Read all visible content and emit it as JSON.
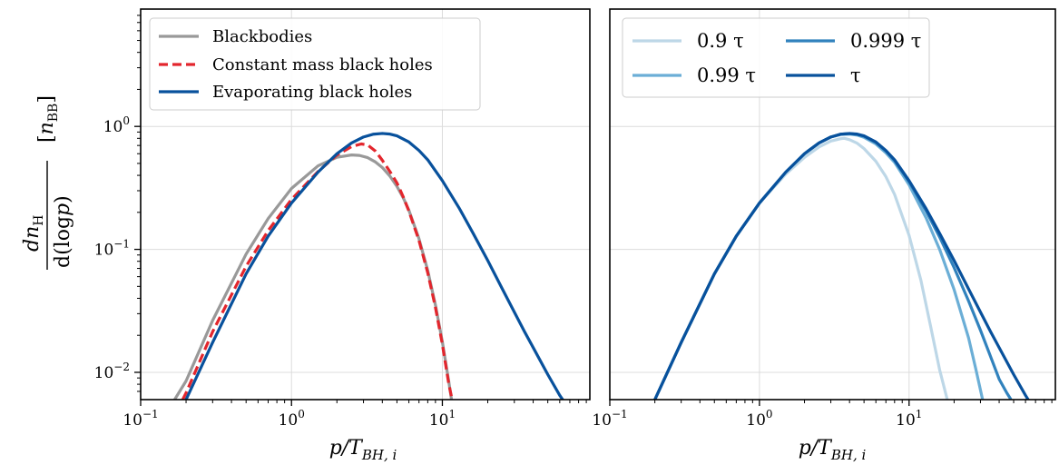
{
  "colors": {
    "blackbody": "#999999",
    "constant_mass": "#e3262d",
    "evaporating": "#08519c",
    "t090": "#bdd7e7",
    "t099": "#6baed6",
    "t0999": "#3182bd",
    "t1": "#08519c"
  },
  "ylabel": {
    "num_base": "dn",
    "num_sub": "H",
    "den_pre": "d(log",
    "den_var": "p",
    "den_post": ")",
    "unit_pre": "[",
    "unit_var": "n",
    "unit_sub": "BB",
    "unit_post": "]"
  },
  "chart_data": [
    {
      "type": "line",
      "panel": "left",
      "xlabel": {
        "var": "p/T",
        "sub": "BH, i"
      },
      "xscale": "log",
      "yscale": "log",
      "xlim": [
        0.1,
        95
      ],
      "ylim": [
        0.006,
        9
      ],
      "grid": true,
      "x_ticks": [
        {
          "value": 0.1,
          "base": "10",
          "exp": "−1"
        },
        {
          "value": 1,
          "base": "10",
          "exp": "0"
        },
        {
          "value": 10,
          "base": "10",
          "exp": "1"
        }
      ],
      "y_ticks": [
        {
          "value": 0.01,
          "base": "10",
          "exp": "−2"
        },
        {
          "value": 0.1,
          "base": "10",
          "exp": "−1"
        },
        {
          "value": 1,
          "base": "10",
          "exp": "0"
        }
      ],
      "legend": {
        "placement": "upper-left",
        "columns": 1
      },
      "series": [
        {
          "name": "Blackbodies",
          "style": "solid",
          "x": [
            0.168,
            0.2,
            0.3,
            0.5,
            0.7,
            1.0,
            1.5,
            2.0,
            2.5,
            2.82,
            3.2,
            3.6,
            4.0,
            4.5,
            5.0,
            5.5,
            6.0,
            7.0,
            8.0,
            9.0,
            10.0,
            11.0,
            11.5
          ],
          "y": [
            0.006,
            0.0085,
            0.0264,
            0.0915,
            0.178,
            0.313,
            0.478,
            0.561,
            0.586,
            0.581,
            0.557,
            0.514,
            0.463,
            0.393,
            0.325,
            0.263,
            0.208,
            0.122,
            0.0673,
            0.0353,
            0.0177,
            0.0086,
            0.006
          ]
        },
        {
          "name": "Constant mass black holes",
          "style": "dashed",
          "x": [
            0.19,
            0.2,
            0.3,
            0.5,
            0.7,
            1.0,
            1.5,
            2.0,
            2.5,
            2.9,
            3.2,
            3.6,
            4.0,
            4.5,
            5.0,
            5.5,
            6.0,
            7.0,
            8.0,
            9.0,
            10.0,
            11.0,
            11.6
          ],
          "y": [
            0.006,
            0.0068,
            0.0214,
            0.0728,
            0.142,
            0.255,
            0.43,
            0.585,
            0.685,
            0.72,
            0.706,
            0.63,
            0.53,
            0.428,
            0.347,
            0.268,
            0.205,
            0.118,
            0.0645,
            0.0337,
            0.0169,
            0.0082,
            0.006
          ]
        },
        {
          "name": "Evaporating black holes",
          "style": "solid",
          "x": [
            0.2,
            0.3,
            0.5,
            0.7,
            1.0,
            1.5,
            2.0,
            2.5,
            3.0,
            3.5,
            4.0,
            4.5,
            5.0,
            6.0,
            7.0,
            8.0,
            10.0,
            13.0,
            16.0,
            20.0,
            25.0,
            30.0,
            35.0,
            40.0,
            50.0,
            60.0,
            68.0,
            72.0
          ],
          "y": [
            0.006,
            0.0175,
            0.0632,
            0.128,
            0.238,
            0.425,
            0.6,
            0.733,
            0.82,
            0.865,
            0.877,
            0.866,
            0.838,
            0.747,
            0.637,
            0.535,
            0.362,
            0.214,
            0.135,
            0.0811,
            0.0476,
            0.0309,
            0.0215,
            0.0159,
            0.0096,
            0.0065,
            0.0052,
            0.0047
          ]
        }
      ]
    },
    {
      "type": "line",
      "panel": "right",
      "xlabel": {
        "var": "p/T",
        "sub": "BH, i"
      },
      "xscale": "log",
      "yscale": "log",
      "xlim": [
        0.1,
        95
      ],
      "ylim": [
        0.006,
        9
      ],
      "grid": true,
      "x_ticks": [
        {
          "value": 0.1,
          "base": "10",
          "exp": "−1"
        },
        {
          "value": 1,
          "base": "10",
          "exp": "0"
        },
        {
          "value": 10,
          "base": "10",
          "exp": "1"
        }
      ],
      "legend": {
        "placement": "upper-left",
        "columns": 2
      },
      "series": [
        {
          "name": "0.9 τ",
          "style": "solid",
          "x": [
            0.2,
            0.3,
            0.5,
            0.7,
            1.0,
            1.5,
            2.0,
            2.5,
            3.0,
            3.5,
            3.7,
            4.0,
            4.5,
            5.0,
            6.0,
            7.0,
            8.0,
            10.0,
            12.0,
            14.0,
            16.0,
            18.0
          ],
          "y": [
            0.006,
            0.0175,
            0.0632,
            0.128,
            0.238,
            0.41,
            0.56,
            0.68,
            0.76,
            0.795,
            0.8,
            0.78,
            0.73,
            0.66,
            0.52,
            0.39,
            0.28,
            0.13,
            0.056,
            0.023,
            0.0105,
            0.006
          ]
        },
        {
          "name": "0.99 τ",
          "style": "solid",
          "x": [
            0.2,
            0.3,
            0.5,
            0.7,
            1.0,
            1.5,
            2.0,
            2.5,
            3.0,
            3.5,
            4.0,
            4.5,
            5.0,
            6.0,
            7.0,
            8.0,
            10.0,
            13.0,
            16.0,
            20.0,
            25.0,
            28.0,
            31.0
          ],
          "y": [
            0.006,
            0.0175,
            0.0632,
            0.128,
            0.238,
            0.425,
            0.6,
            0.733,
            0.82,
            0.86,
            0.865,
            0.85,
            0.815,
            0.72,
            0.61,
            0.51,
            0.335,
            0.18,
            0.1,
            0.047,
            0.019,
            0.0105,
            0.006
          ]
        },
        {
          "name": "0.999 τ",
          "style": "solid",
          "x": [
            0.2,
            0.3,
            0.5,
            0.7,
            1.0,
            1.5,
            2.0,
            2.5,
            3.0,
            3.5,
            4.0,
            4.5,
            5.0,
            6.0,
            7.0,
            8.0,
            10.0,
            13.0,
            16.0,
            20.0,
            25.0,
            30.0,
            35.0,
            40.0,
            45.0,
            48.0
          ],
          "y": [
            0.006,
            0.0175,
            0.0632,
            0.128,
            0.238,
            0.425,
            0.6,
            0.733,
            0.82,
            0.865,
            0.875,
            0.862,
            0.833,
            0.74,
            0.63,
            0.528,
            0.355,
            0.205,
            0.126,
            0.071,
            0.038,
            0.022,
            0.0135,
            0.0088,
            0.0068,
            0.006
          ]
        },
        {
          "name": "τ",
          "style": "solid",
          "x": [
            0.2,
            0.3,
            0.5,
            0.7,
            1.0,
            1.5,
            2.0,
            2.5,
            3.0,
            3.5,
            4.0,
            4.5,
            5.0,
            6.0,
            7.0,
            8.0,
            10.0,
            13.0,
            16.0,
            20.0,
            25.0,
            30.0,
            35.0,
            40.0,
            50.0,
            60.0,
            70.0,
            76.0
          ],
          "y": [
            0.006,
            0.0175,
            0.0632,
            0.128,
            0.238,
            0.425,
            0.6,
            0.733,
            0.82,
            0.865,
            0.877,
            0.866,
            0.838,
            0.747,
            0.637,
            0.535,
            0.362,
            0.214,
            0.135,
            0.0811,
            0.0476,
            0.0309,
            0.0215,
            0.0159,
            0.0096,
            0.0065,
            0.0048,
            0.006
          ]
        }
      ]
    }
  ]
}
